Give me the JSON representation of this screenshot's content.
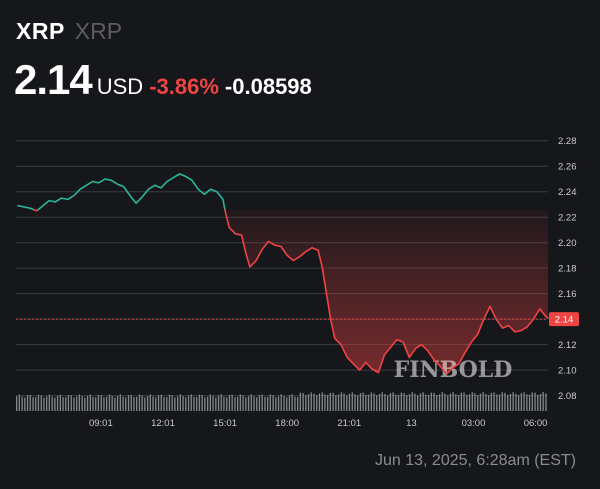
{
  "header": {
    "symbol": "XRP",
    "name": "XRP",
    "price": "2.14",
    "currency": "USD",
    "change_pct": "-3.86%",
    "change_abs": "-0.08598"
  },
  "footer": {
    "timestamp": "Jun 13, 2025, 6:28am (EST)"
  },
  "watermark": "FINBOLD",
  "colors": {
    "background": "#16171b",
    "up": "#2bb59a",
    "down": "#ef4444",
    "grid": "#3a3c42",
    "axis_text": "#c9cbd1",
    "volume": "#9a9ca2",
    "price_tag": "#ef4444"
  },
  "chart_data": {
    "type": "line",
    "title": "",
    "xlabel": "",
    "ylabel": "",
    "ylim": [
      2.075,
      2.29
    ],
    "y_ticks": [
      "2.28",
      "2.26",
      "2.24",
      "2.22",
      "2.20",
      "2.18",
      "2.16",
      "2.14",
      "2.12",
      "2.10",
      "2.08"
    ],
    "x_tick_labels": [
      {
        "label": "09:01",
        "h": 4.0
      },
      {
        "label": "12:01",
        "h": 7.0
      },
      {
        "label": "15:01",
        "h": 10.0
      },
      {
        "label": "18:00",
        "h": 13.0
      },
      {
        "label": "21:01",
        "h": 16.0
      },
      {
        "label": "13",
        "h": 19.0
      },
      {
        "label": "03:00",
        "h": 22.0
      },
      {
        "label": "06:00",
        "h": 25.0
      }
    ],
    "x_range_hours": [
      -0.1,
      25.6
    ],
    "baseline": 2.2259,
    "current_price": 2.14,
    "current_price_label": "2.14",
    "grid": true,
    "series": [
      {
        "values": [
          [
            0.0,
            2.229
          ],
          [
            0.3,
            2.228
          ],
          [
            0.6,
            2.227
          ],
          [
            0.9,
            2.225
          ],
          [
            1.2,
            2.229
          ],
          [
            1.5,
            2.233
          ],
          [
            1.8,
            2.232
          ],
          [
            2.1,
            2.235
          ],
          [
            2.4,
            2.234
          ],
          [
            2.7,
            2.237
          ],
          [
            3.0,
            2.242
          ],
          [
            3.3,
            2.245
          ],
          [
            3.6,
            2.248
          ],
          [
            3.9,
            2.247
          ],
          [
            4.2,
            2.25
          ],
          [
            4.5,
            2.249
          ],
          [
            4.8,
            2.246
          ],
          [
            5.1,
            2.244
          ],
          [
            5.4,
            2.237
          ],
          [
            5.7,
            2.231
          ],
          [
            6.0,
            2.236
          ],
          [
            6.3,
            2.242
          ],
          [
            6.6,
            2.245
          ],
          [
            6.9,
            2.243
          ],
          [
            7.2,
            2.248
          ],
          [
            7.5,
            2.251
          ],
          [
            7.8,
            2.254
          ],
          [
            8.1,
            2.252
          ],
          [
            8.4,
            2.249
          ],
          [
            8.7,
            2.242
          ],
          [
            9.0,
            2.238
          ],
          [
            9.3,
            2.242
          ],
          [
            9.6,
            2.24
          ],
          [
            9.9,
            2.234
          ],
          [
            10.0,
            2.225
          ],
          [
            10.2,
            2.212
          ],
          [
            10.5,
            2.207
          ],
          [
            10.8,
            2.206
          ],
          [
            11.0,
            2.192
          ],
          [
            11.2,
            2.181
          ],
          [
            11.5,
            2.186
          ],
          [
            11.8,
            2.195
          ],
          [
            12.1,
            2.201
          ],
          [
            12.4,
            2.198
          ],
          [
            12.7,
            2.197
          ],
          [
            13.0,
            2.19
          ],
          [
            13.3,
            2.186
          ],
          [
            13.6,
            2.189
          ],
          [
            13.9,
            2.193
          ],
          [
            14.2,
            2.196
          ],
          [
            14.5,
            2.194
          ],
          [
            14.7,
            2.18
          ],
          [
            14.9,
            2.16
          ],
          [
            15.1,
            2.14
          ],
          [
            15.3,
            2.125
          ],
          [
            15.6,
            2.12
          ],
          [
            15.9,
            2.11
          ],
          [
            16.2,
            2.105
          ],
          [
            16.5,
            2.1
          ],
          [
            16.8,
            2.106
          ],
          [
            17.1,
            2.101
          ],
          [
            17.4,
            2.098
          ],
          [
            17.7,
            2.112
          ],
          [
            18.0,
            2.118
          ],
          [
            18.3,
            2.124
          ],
          [
            18.6,
            2.122
          ],
          [
            18.9,
            2.11
          ],
          [
            19.2,
            2.117
          ],
          [
            19.5,
            2.12
          ],
          [
            19.8,
            2.115
          ],
          [
            20.1,
            2.108
          ],
          [
            20.4,
            2.103
          ],
          [
            20.7,
            2.097
          ],
          [
            21.0,
            2.102
          ],
          [
            21.3,
            2.105
          ],
          [
            21.6,
            2.114
          ],
          [
            21.9,
            2.122
          ],
          [
            22.2,
            2.128
          ],
          [
            22.5,
            2.14
          ],
          [
            22.8,
            2.15
          ],
          [
            23.1,
            2.14
          ],
          [
            23.4,
            2.133
          ],
          [
            23.7,
            2.135
          ],
          [
            24.0,
            2.13
          ],
          [
            24.3,
            2.131
          ],
          [
            24.6,
            2.134
          ],
          [
            24.9,
            2.14
          ],
          [
            25.2,
            2.148
          ],
          [
            25.5,
            2.142
          ],
          [
            25.6,
            2.141
          ]
        ]
      }
    ]
  }
}
